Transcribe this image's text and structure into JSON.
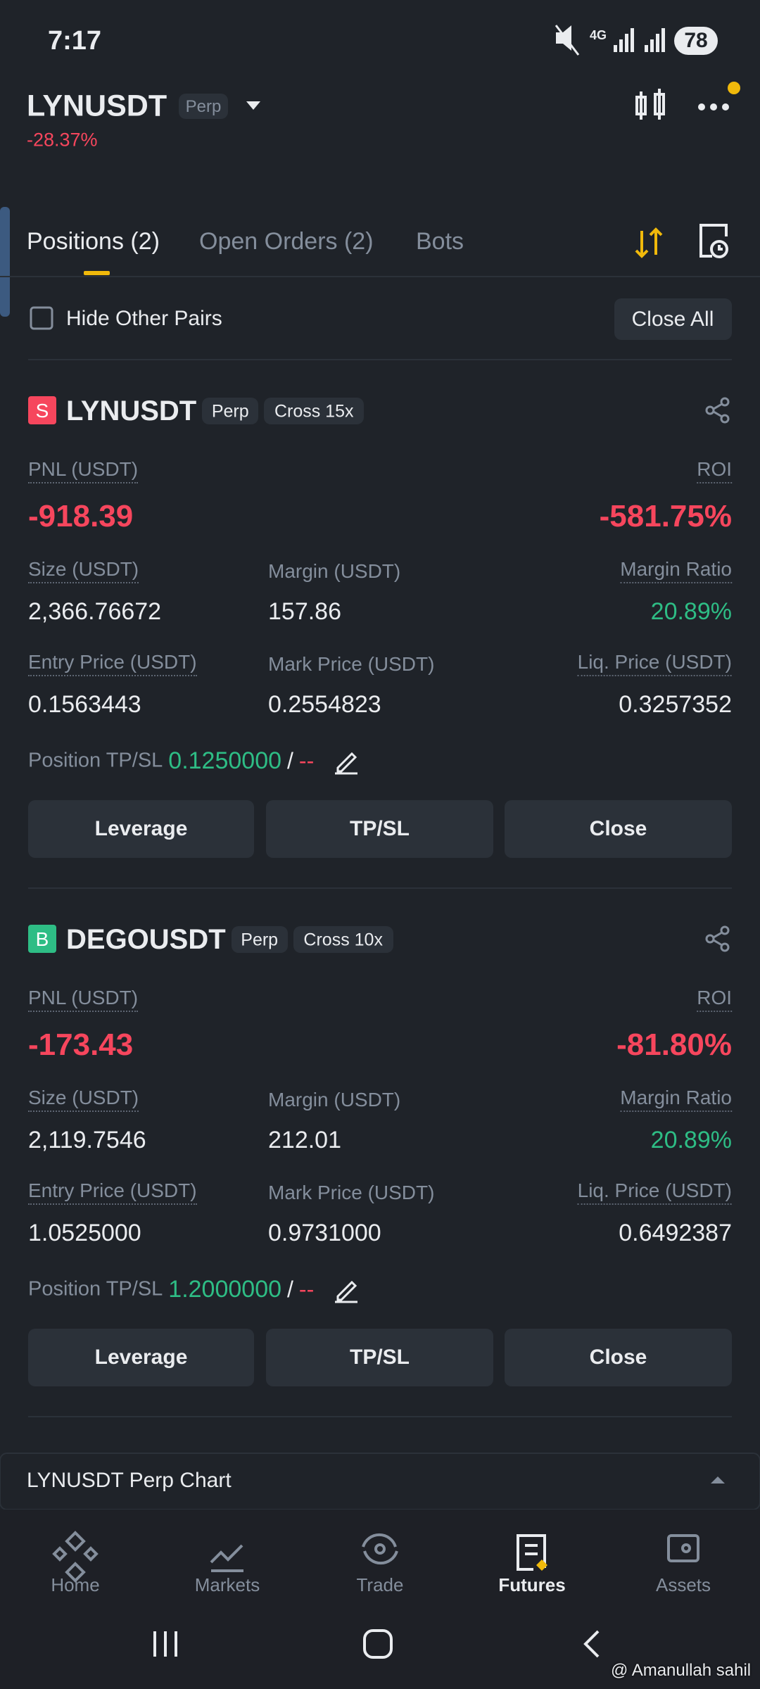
{
  "status_bar": {
    "time": "7:17",
    "network": "4G",
    "battery": "78"
  },
  "header": {
    "symbol": "LYNUSDT",
    "badge": "Perp",
    "change": "-28.37%"
  },
  "tabs": [
    "Positions (2)",
    "Open Orders (2)",
    "Bots"
  ],
  "filter": {
    "label": "Hide Other Pairs",
    "close_all": "Close All"
  },
  "positions": [
    {
      "side": "S",
      "symbol": "LYNUSDT",
      "badge": "Perp",
      "mode": "Cross 15x",
      "pnl_label": "PNL (USDT)",
      "pnl": "-918.39",
      "roi_label": "ROI",
      "roi": "-581.75%",
      "size_label": "Size (USDT)",
      "size": "2,366.76672",
      "margin_label": "Margin (USDT)",
      "margin": "157.86",
      "ratio_label": "Margin Ratio",
      "ratio": "20.89%",
      "entry_label": "Entry Price (USDT)",
      "entry": "0.1563443",
      "mark_label": "Mark Price (USDT)",
      "mark": "0.2554823",
      "liq_label": "Liq. Price (USDT)",
      "liq": "0.3257352",
      "tpsl_label": "Position TP/SL",
      "tp": "0.1250000",
      "separator": "/",
      "sl": "--",
      "buttons": [
        "Leverage",
        "TP/SL",
        "Close"
      ]
    },
    {
      "side": "B",
      "symbol": "DEGOUSDT",
      "badge": "Perp",
      "mode": "Cross 10x",
      "pnl_label": "PNL (USDT)",
      "pnl": "-173.43",
      "roi_label": "ROI",
      "roi": "-81.80%",
      "size_label": "Size (USDT)",
      "size": "2,119.7546",
      "margin_label": "Margin (USDT)",
      "margin": "212.01",
      "ratio_label": "Margin Ratio",
      "ratio": "20.89%",
      "entry_label": "Entry Price (USDT)",
      "entry": "1.0525000",
      "mark_label": "Mark Price (USDT)",
      "mark": "0.9731000",
      "liq_label": "Liq. Price (USDT)",
      "liq": "0.6492387",
      "tpsl_label": "Position TP/SL",
      "tp": "1.2000000",
      "separator": "/",
      "sl": "--",
      "buttons": [
        "Leverage",
        "TP/SL",
        "Close"
      ]
    }
  ],
  "chart_bar": "LYNUSDT Perp Chart",
  "nav": [
    "Home",
    "Markets",
    "Trade",
    "Futures",
    "Assets"
  ],
  "watermark": "@ Amanullah sahil"
}
